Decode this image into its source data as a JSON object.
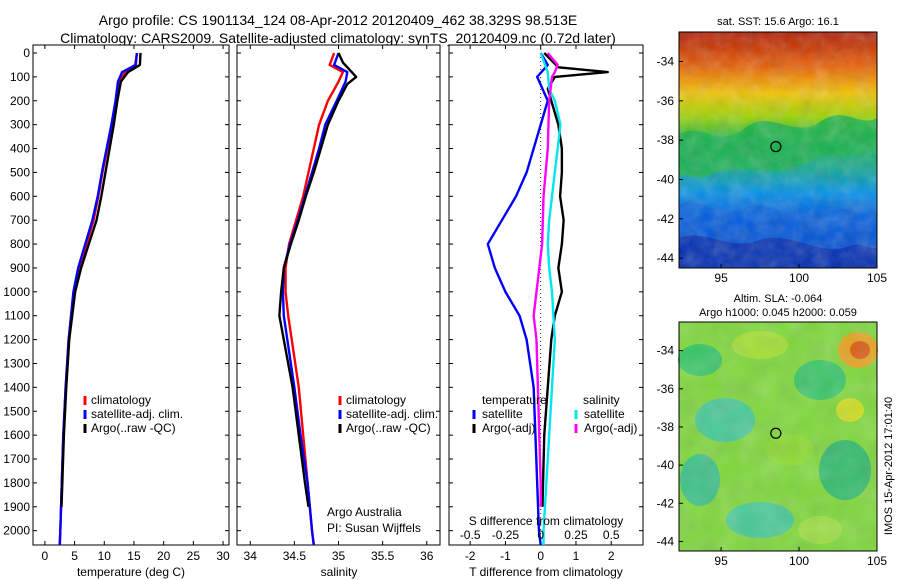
{
  "header": {
    "title_line1": "Argo profile: CS 1901134_124 08-Apr-2012 20120409_462 38.329S 98.513E",
    "title_line2": "Climatology: CARS2009. Satellite-adjusted climatology: synTS_20120409.nc (0.72d later)"
  },
  "side_stamp": "IMOS 15-Apr-2012 17:01:40",
  "colors": {
    "climatology": "#ff0000",
    "satellite": "#0000ff",
    "argo": "#000000",
    "sal_satellite": "#00e5ee",
    "sal_argo": "#ff00ff"
  },
  "chart_data": [
    {
      "type": "line",
      "xlabel": "temperature (deg C)",
      "ylabel": "",
      "xlim": [
        -2,
        31
      ],
      "ylim": [
        2060,
        0
      ],
      "xticks": [
        "0",
        "5",
        "10",
        "15",
        "20",
        "25",
        "30"
      ],
      "yticks": [
        "0",
        "100",
        "200",
        "300",
        "400",
        "500",
        "600",
        "700",
        "800",
        "900",
        "1000",
        "1100",
        "1200",
        "1300",
        "1400",
        "1500",
        "1600",
        "1700",
        "1800",
        "1900",
        "2000"
      ],
      "legend": [
        "climatology",
        "satellite-adj. clim.",
        "Argo(..raw -QC)"
      ],
      "series": [
        {
          "name": "climatology",
          "depth": [
            0,
            50,
            80,
            120,
            200,
            300,
            400,
            500,
            600,
            700,
            800,
            900,
            1000,
            1200,
            1400,
            1600,
            2000,
            2060
          ],
          "values": [
            15.5,
            15.2,
            13.5,
            12.6,
            12.0,
            11.3,
            10.5,
            9.7,
            9.0,
            8.2,
            7.0,
            5.8,
            4.9,
            4.0,
            3.5,
            3.1,
            2.6,
            2.5
          ]
        },
        {
          "name": "satellite-adj. clim.",
          "depth": [
            0,
            50,
            80,
            120,
            200,
            300,
            400,
            500,
            600,
            700,
            800,
            900,
            1000,
            1200,
            1400,
            1600,
            2000,
            2060
          ],
          "values": [
            15.5,
            15.3,
            13.0,
            12.3,
            11.9,
            11.2,
            10.4,
            9.6,
            8.9,
            8.0,
            6.8,
            5.6,
            4.8,
            4.0,
            3.5,
            3.1,
            2.6,
            2.5
          ]
        },
        {
          "name": "Argo(..raw -QC)",
          "depth": [
            0,
            50,
            80,
            120,
            200,
            300,
            400,
            500,
            600,
            700,
            800,
            900,
            1000,
            1200,
            1400,
            1600,
            1900
          ],
          "values": [
            16.1,
            16.0,
            14.0,
            12.8,
            12.2,
            11.6,
            10.9,
            10.2,
            9.5,
            8.7,
            7.4,
            6.1,
            5.1,
            4.1,
            3.6,
            3.2,
            2.8
          ]
        }
      ]
    },
    {
      "type": "line",
      "xlabel": "salinity",
      "ylabel": "",
      "xlim": [
        33.85,
        36.15
      ],
      "ylim": [
        2060,
        0
      ],
      "xticks": [
        "34",
        "34.5",
        "35",
        "35.5",
        "36"
      ],
      "legend": [
        "climatology",
        "satellite-adj. clim.",
        "Argo(..raw -QC)"
      ],
      "annotation": [
        "Argo Australia",
        "PI: Susan Wijffels"
      ],
      "series": [
        {
          "name": "climatology",
          "depth": [
            0,
            50,
            80,
            120,
            200,
            300,
            400,
            500,
            600,
            700,
            800,
            900,
            1000,
            1100,
            1200,
            1400,
            1600,
            1800,
            2000,
            2060
          ],
          "values": [
            34.95,
            34.9,
            35.05,
            35.0,
            34.88,
            34.78,
            34.72,
            34.66,
            34.6,
            34.52,
            34.44,
            34.4,
            34.4,
            34.43,
            34.47,
            34.55,
            34.6,
            34.65,
            34.7,
            34.72
          ]
        },
        {
          "name": "satellite-adj. clim.",
          "depth": [
            0,
            50,
            80,
            120,
            200,
            300,
            400,
            500,
            600,
            700,
            800,
            900,
            1000,
            1100,
            1200,
            1400,
            1600,
            1800,
            2000,
            2060
          ],
          "values": [
            35.0,
            34.95,
            35.1,
            35.08,
            34.98,
            34.85,
            34.78,
            34.7,
            34.62,
            34.54,
            34.45,
            34.38,
            34.37,
            34.38,
            34.42,
            34.5,
            34.57,
            34.65,
            34.7,
            34.72
          ]
        },
        {
          "name": "Argo(..raw -QC)",
          "depth": [
            0,
            40,
            80,
            100,
            130,
            200,
            300,
            400,
            500,
            600,
            700,
            800,
            900,
            1000,
            1100,
            1200,
            1400,
            1600,
            1800,
            1900
          ],
          "values": [
            35.0,
            35.05,
            35.15,
            35.2,
            35.1,
            35.0,
            34.88,
            34.8,
            34.72,
            34.63,
            34.55,
            34.46,
            34.38,
            34.35,
            34.33,
            34.38,
            34.48,
            34.55,
            34.62,
            34.66
          ]
        }
      ]
    },
    {
      "type": "line",
      "xlabel": "T difference from climatology",
      "x2label": "S difference from climatology",
      "xlim": [
        -2.6,
        2.9
      ],
      "ylim": [
        2060,
        0
      ],
      "xticks": [
        "-2",
        "-1",
        "0",
        "1",
        "2"
      ],
      "x2ticks": [
        "-0.5",
        "-0.25",
        "0",
        "0.25",
        "0.5"
      ],
      "legend_groups": [
        "temperature",
        "salinity"
      ],
      "legend": [
        "satellite",
        "Argo(-adj)",
        "satellite",
        "Argo(-adj)"
      ],
      "series": [
        {
          "name": "temperature satellite",
          "depth": [
            0,
            50,
            100,
            200,
            300,
            400,
            500,
            600,
            700,
            800,
            900,
            1000,
            1100,
            1200,
            1300,
            1400,
            1600,
            1800,
            2000,
            2060
          ],
          "values": [
            0.0,
            0.2,
            -0.1,
            0.2,
            0.0,
            -0.2,
            -0.4,
            -0.7,
            -1.1,
            -1.5,
            -1.3,
            -1.0,
            -0.6,
            -0.4,
            -0.3,
            -0.2,
            -0.15,
            -0.1,
            -0.05,
            0.0
          ]
        },
        {
          "name": "temperature Argo(-adj)",
          "depth": [
            0,
            60,
            80,
            100,
            150,
            200,
            300,
            400,
            500,
            600,
            700,
            800,
            900,
            1000,
            1100,
            1200,
            1400,
            1600,
            1900
          ],
          "values": [
            0.1,
            0.5,
            1.9,
            0.4,
            0.2,
            0.3,
            0.5,
            0.6,
            0.6,
            0.55,
            0.65,
            0.6,
            0.5,
            0.6,
            0.4,
            0.3,
            0.2,
            0.1,
            0.05
          ]
        },
        {
          "name": "salinity satellite",
          "depth": [
            0,
            80,
            150,
            200,
            300,
            400,
            500,
            600,
            700,
            800,
            900,
            1000,
            1200,
            1400,
            1600,
            1800,
            2000,
            2060
          ],
          "values": [
            0.0,
            0.05,
            0.06,
            0.1,
            0.14,
            0.12,
            0.1,
            0.08,
            0.06,
            0.05,
            0.06,
            0.08,
            0.1,
            0.08,
            0.06,
            0.04,
            0.02,
            0.02
          ]
        },
        {
          "name": "salinity Argo(-adj)",
          "depth": [
            0,
            50,
            80,
            100,
            150,
            200,
            400,
            600,
            800,
            900,
            1000,
            1100,
            1200,
            1400,
            1600,
            1800,
            1900
          ],
          "values": [
            0.05,
            0.12,
            0.1,
            0.08,
            0.07,
            0.06,
            0.05,
            0.02,
            0.01,
            -0.01,
            -0.03,
            -0.05,
            -0.03,
            -0.02,
            -0.01,
            0.0,
            0.0
          ]
        }
      ]
    },
    {
      "type": "heatmap",
      "title": "sat. SST: 15.6  Argo: 16.1",
      "xticks": [
        "95",
        "100",
        "105"
      ],
      "yticks": [
        "-34",
        "-36",
        "-38",
        "-40",
        "-42",
        "-44"
      ],
      "xlim": [
        92.3,
        105
      ],
      "ylim": [
        -44.5,
        -32.5
      ],
      "marker": {
        "lon": 98.513,
        "lat": -38.329
      }
    },
    {
      "type": "heatmap",
      "title_line1": "Altim. SLA: -0.064",
      "title_line2": "Argo h1000: 0.045 h2000: 0.059",
      "xticks": [
        "95",
        "100",
        "105"
      ],
      "yticks": [
        "-34",
        "-36",
        "-38",
        "-40",
        "-42",
        "-44"
      ],
      "xlim": [
        92.3,
        105
      ],
      "ylim": [
        -44.5,
        -32.5
      ],
      "marker": {
        "lon": 98.513,
        "lat": -38.329
      }
    }
  ]
}
